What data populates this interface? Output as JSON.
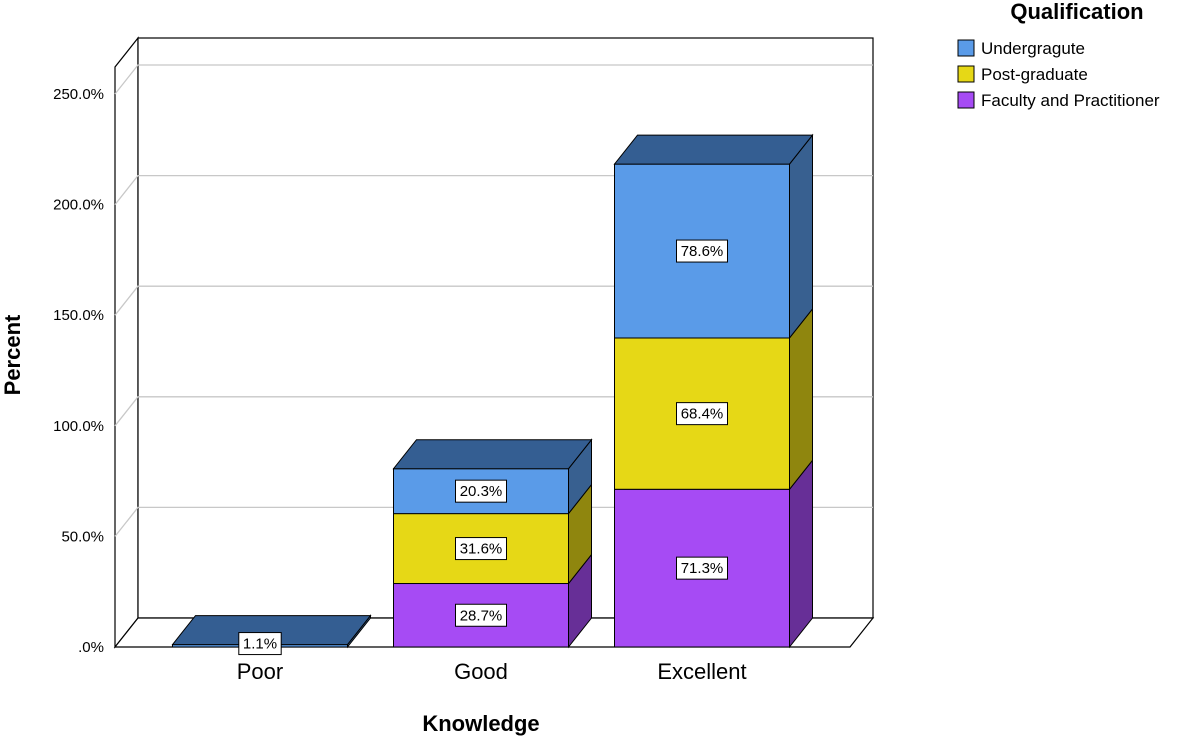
{
  "chart_data": {
    "type": "bar",
    "stacked": true,
    "three_d": true,
    "categories": [
      "Poor",
      "Good",
      "Excellent"
    ],
    "series": [
      {
        "name": "Faculty and Practitioner",
        "color": "#A64BF4",
        "values": [
          0,
          28.7,
          71.3
        ],
        "labels": [
          "",
          "28.7%",
          "71.3%"
        ]
      },
      {
        "name": "Post-graduate",
        "color": "#E6D816",
        "values": [
          0,
          31.6,
          68.4
        ],
        "labels": [
          "",
          "31.6%",
          "68.4%"
        ]
      },
      {
        "name": "Undergragute",
        "color": "#5A9BE8",
        "values": [
          1.1,
          20.3,
          78.6
        ],
        "labels": [
          "1.1%",
          "20.3%",
          "78.6%"
        ]
      }
    ],
    "legend_order": [
      "Undergragute",
      "Post-graduate",
      "Faculty and Practitioner"
    ],
    "legend_title": "Qualification",
    "legend_position": "top-right",
    "xlabel": "Knowledge",
    "ylabel": "Percent",
    "ylim": [
      0,
      250
    ],
    "yticks": [
      ".0%",
      "50.0%",
      "100.0%",
      "150.0%",
      "200.0%",
      "250.0%"
    ],
    "grid": true
  }
}
